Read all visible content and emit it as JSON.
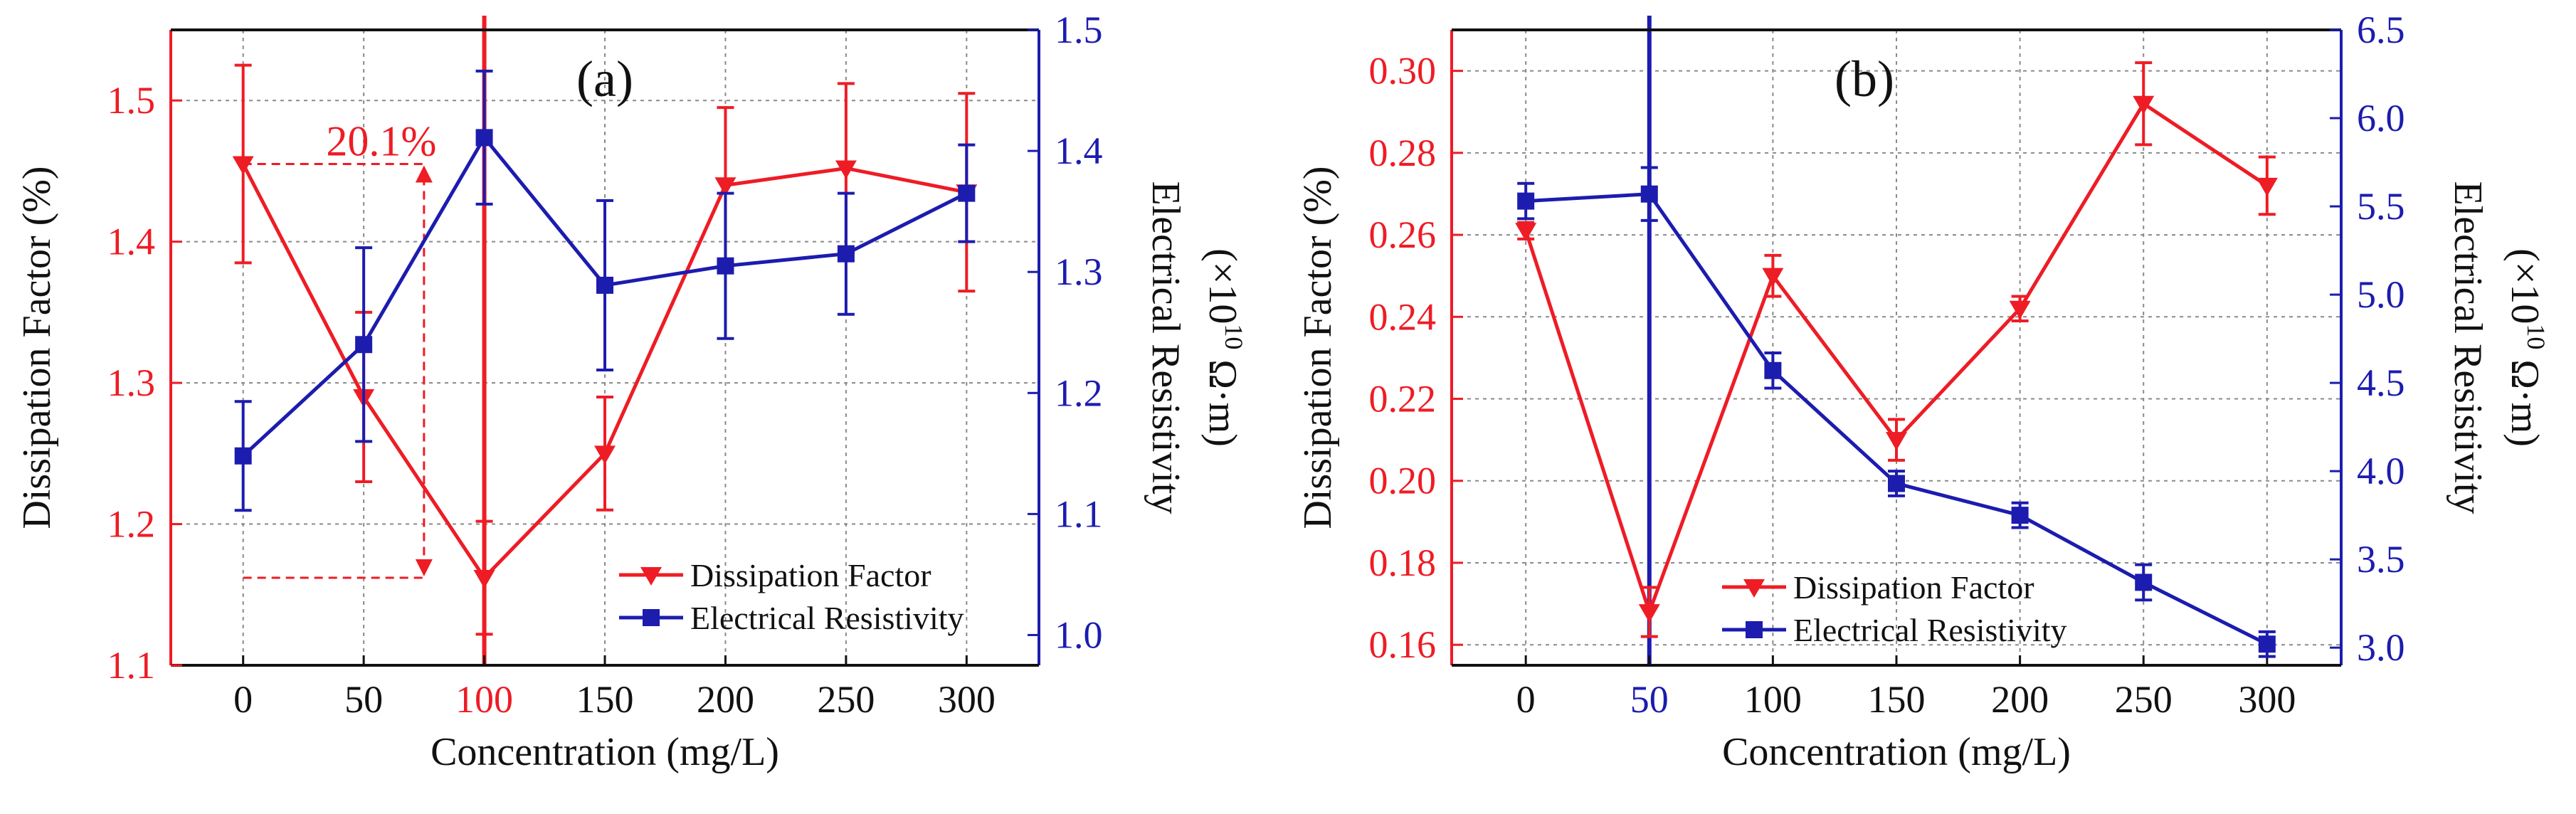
{
  "chart_data": [
    {
      "type": "line",
      "panel_label": "(a)",
      "xlabel": "Concentration (mg/L)",
      "ylabel_left": "Dissipation  Factor (%)",
      "ylabel_right_line1": "Electrical Resistivity",
      "ylabel_right_line2_prefix": "(×10",
      "ylabel_right_line2_exp": "10",
      "ylabel_right_line2_suffix": "  Ω·m)",
      "x": [
        0,
        50,
        100,
        150,
        200,
        250,
        300
      ],
      "x_tick_labels": [
        "0",
        "50",
        "100",
        "150",
        "200",
        "250",
        "300"
      ],
      "highlight_x": 100,
      "highlight_color": "#ee1c25",
      "xlim": [
        -30,
        330
      ],
      "ylim_left": [
        1.1,
        1.55
      ],
      "ylim_right": [
        0.975,
        1.5
      ],
      "y_left_ticks": [
        "1.1",
        "1.2",
        "1.3",
        "1.4",
        "1.5"
      ],
      "y_right_ticks": [
        "1.0",
        "1.1",
        "1.2",
        "1.3",
        "1.4",
        "1.5"
      ],
      "left_tick_values": [
        1.1,
        1.2,
        1.3,
        1.4,
        1.5
      ],
      "right_tick_values": [
        1.0,
        1.1,
        1.2,
        1.3,
        1.4,
        1.5
      ],
      "series": [
        {
          "name": "Dissipation Factor",
          "axis": "left",
          "color": "#ee1c25",
          "marker": "triangle-down",
          "values": [
            1.455,
            1.29,
            1.162,
            1.25,
            1.44,
            1.452,
            1.435
          ],
          "errors": [
            0.07,
            0.06,
            0.04,
            0.04,
            0.055,
            0.06,
            0.07
          ]
        },
        {
          "name": "Electrical Resistivity",
          "axis": "right",
          "color": "#1c1caf",
          "marker": "square",
          "values": [
            1.148,
            1.24,
            1.411,
            1.289,
            1.305,
            1.315,
            1.365
          ],
          "errors": [
            0.045,
            0.08,
            0.055,
            0.07,
            0.06,
            0.05,
            0.04
          ]
        }
      ],
      "annotation": {
        "text": "20.1%",
        "from_value": 1.455,
        "to_value": 1.162,
        "x": 75,
        "color": "#ee1c25"
      },
      "legend_position": "bottom-right"
    },
    {
      "type": "line",
      "panel_label": "(b)",
      "xlabel": "Concentration (mg/L)",
      "ylabel_left": "Dissipation  Factor (%)",
      "ylabel_right_line1": "Electrical Resistivity",
      "ylabel_right_line2_prefix": "(×10",
      "ylabel_right_line2_exp": "10",
      "ylabel_right_line2_suffix": "  Ω·m)",
      "x": [
        0,
        50,
        100,
        150,
        200,
        250,
        300
      ],
      "x_tick_labels": [
        "0",
        "50",
        "100",
        "150",
        "200",
        "250",
        "300"
      ],
      "highlight_x": 50,
      "highlight_color": "#1c1caf",
      "xlim": [
        -30,
        330
      ],
      "ylim_left": [
        0.155,
        0.31
      ],
      "ylim_right": [
        2.9,
        6.5
      ],
      "y_left_ticks": [
        "0.16",
        "0.18",
        "0.20",
        "0.22",
        "0.24",
        "0.26",
        "0.28",
        "0.30"
      ],
      "y_right_ticks": [
        "3.0",
        "3.5",
        "4.0",
        "4.5",
        "5.0",
        "5.5",
        "6.0",
        "6.5"
      ],
      "left_tick_values": [
        0.16,
        0.18,
        0.2,
        0.22,
        0.24,
        0.26,
        0.28,
        0.3
      ],
      "right_tick_values": [
        3.0,
        3.5,
        4.0,
        4.5,
        5.0,
        5.5,
        6.0,
        6.5
      ],
      "series": [
        {
          "name": "Dissipation Factor",
          "axis": "left",
          "color": "#ee1c25",
          "marker": "triangle-down",
          "values": [
            0.261,
            0.168,
            0.25,
            0.21,
            0.242,
            0.292,
            0.272
          ],
          "errors": [
            0.002,
            0.006,
            0.005,
            0.005,
            0.003,
            0.01,
            0.007
          ]
        },
        {
          "name": "Electrical Resistivity",
          "axis": "right",
          "color": "#1c1caf",
          "marker": "square",
          "values": [
            5.53,
            5.57,
            4.57,
            3.93,
            3.75,
            3.37,
            3.02
          ],
          "errors": [
            0.1,
            0.15,
            0.1,
            0.07,
            0.07,
            0.1,
            0.07
          ]
        }
      ],
      "legend_position": "bottom-center"
    }
  ]
}
